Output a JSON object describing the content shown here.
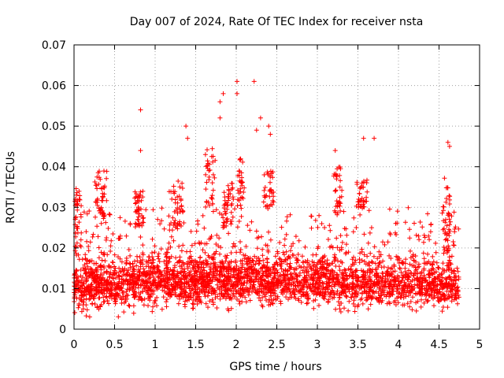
{
  "chart_data": {
    "type": "scatter",
    "title": "Day 007 of 2024, Rate Of TEC Index for receiver nsta",
    "xlabel": "GPS time / hours",
    "ylabel": "ROTI / TECUs",
    "xlim": [
      0,
      5
    ],
    "ylim": [
      0,
      0.07
    ],
    "x_ticks": [
      "0",
      "0.5",
      "1",
      "1.5",
      "2",
      "2.5",
      "3",
      "3.5",
      "4",
      "4.5",
      "5"
    ],
    "y_ticks": [
      "0",
      "0.01",
      "0.02",
      "0.03",
      "0.04",
      "0.05",
      "0.06",
      "0.07"
    ],
    "grid": true,
    "marker": "+",
    "color": "#ff0000",
    "notable_points": [
      {
        "x": 0.82,
        "y": 0.054
      },
      {
        "x": 0.82,
        "y": 0.044
      },
      {
        "x": 1.38,
        "y": 0.05
      },
      {
        "x": 1.4,
        "y": 0.047
      },
      {
        "x": 1.8,
        "y": 0.056
      },
      {
        "x": 1.84,
        "y": 0.058
      },
      {
        "x": 1.8,
        "y": 0.052
      },
      {
        "x": 2.01,
        "y": 0.061
      },
      {
        "x": 2.01,
        "y": 0.058
      },
      {
        "x": 2.22,
        "y": 0.061
      },
      {
        "x": 2.25,
        "y": 0.049
      },
      {
        "x": 2.3,
        "y": 0.052
      },
      {
        "x": 2.4,
        "y": 0.05
      },
      {
        "x": 2.42,
        "y": 0.048
      },
      {
        "x": 3.22,
        "y": 0.044
      },
      {
        "x": 3.57,
        "y": 0.047
      },
      {
        "x": 3.7,
        "y": 0.047
      },
      {
        "x": 4.61,
        "y": 0.046
      },
      {
        "x": 4.63,
        "y": 0.045
      }
    ],
    "dense_cloud": [
      {
        "x_from": 0.0,
        "x_to": 0.8,
        "y_mean": 0.011,
        "y_spread": 0.004,
        "count": 500
      },
      {
        "x_from": 0.8,
        "x_to": 3.2,
        "y_mean": 0.012,
        "y_spread": 0.004,
        "count": 1500
      },
      {
        "x_from": 3.2,
        "x_to": 4.75,
        "y_mean": 0.011,
        "y_spread": 0.0035,
        "count": 800
      }
    ],
    "mid_band": [
      {
        "x_from": 0.0,
        "x_to": 4.75,
        "y_from": 0.016,
        "y_to": 0.03,
        "count": 420
      }
    ],
    "spikes": [
      {
        "x_center": 0.05,
        "width": 0.08,
        "y_from": 0.02,
        "y_to": 0.035,
        "count": 35
      },
      {
        "x_center": 0.33,
        "width": 0.15,
        "y_from": 0.025,
        "y_to": 0.039,
        "count": 45
      },
      {
        "x_center": 0.8,
        "width": 0.12,
        "y_from": 0.025,
        "y_to": 0.034,
        "count": 40
      },
      {
        "x_center": 1.25,
        "width": 0.18,
        "y_from": 0.025,
        "y_to": 0.038,
        "count": 40
      },
      {
        "x_center": 1.68,
        "width": 0.12,
        "y_from": 0.03,
        "y_to": 0.045,
        "count": 35
      },
      {
        "x_center": 1.9,
        "width": 0.14,
        "y_from": 0.025,
        "y_to": 0.036,
        "count": 40
      },
      {
        "x_center": 2.05,
        "width": 0.1,
        "y_from": 0.03,
        "y_to": 0.042,
        "count": 30
      },
      {
        "x_center": 2.4,
        "width": 0.14,
        "y_from": 0.03,
        "y_to": 0.039,
        "count": 35
      },
      {
        "x_center": 3.25,
        "width": 0.12,
        "y_from": 0.028,
        "y_to": 0.04,
        "count": 35
      },
      {
        "x_center": 3.55,
        "width": 0.14,
        "y_from": 0.03,
        "y_to": 0.037,
        "count": 35
      },
      {
        "x_center": 4.6,
        "width": 0.1,
        "y_from": 0.018,
        "y_to": 0.038,
        "count": 40
      }
    ]
  }
}
